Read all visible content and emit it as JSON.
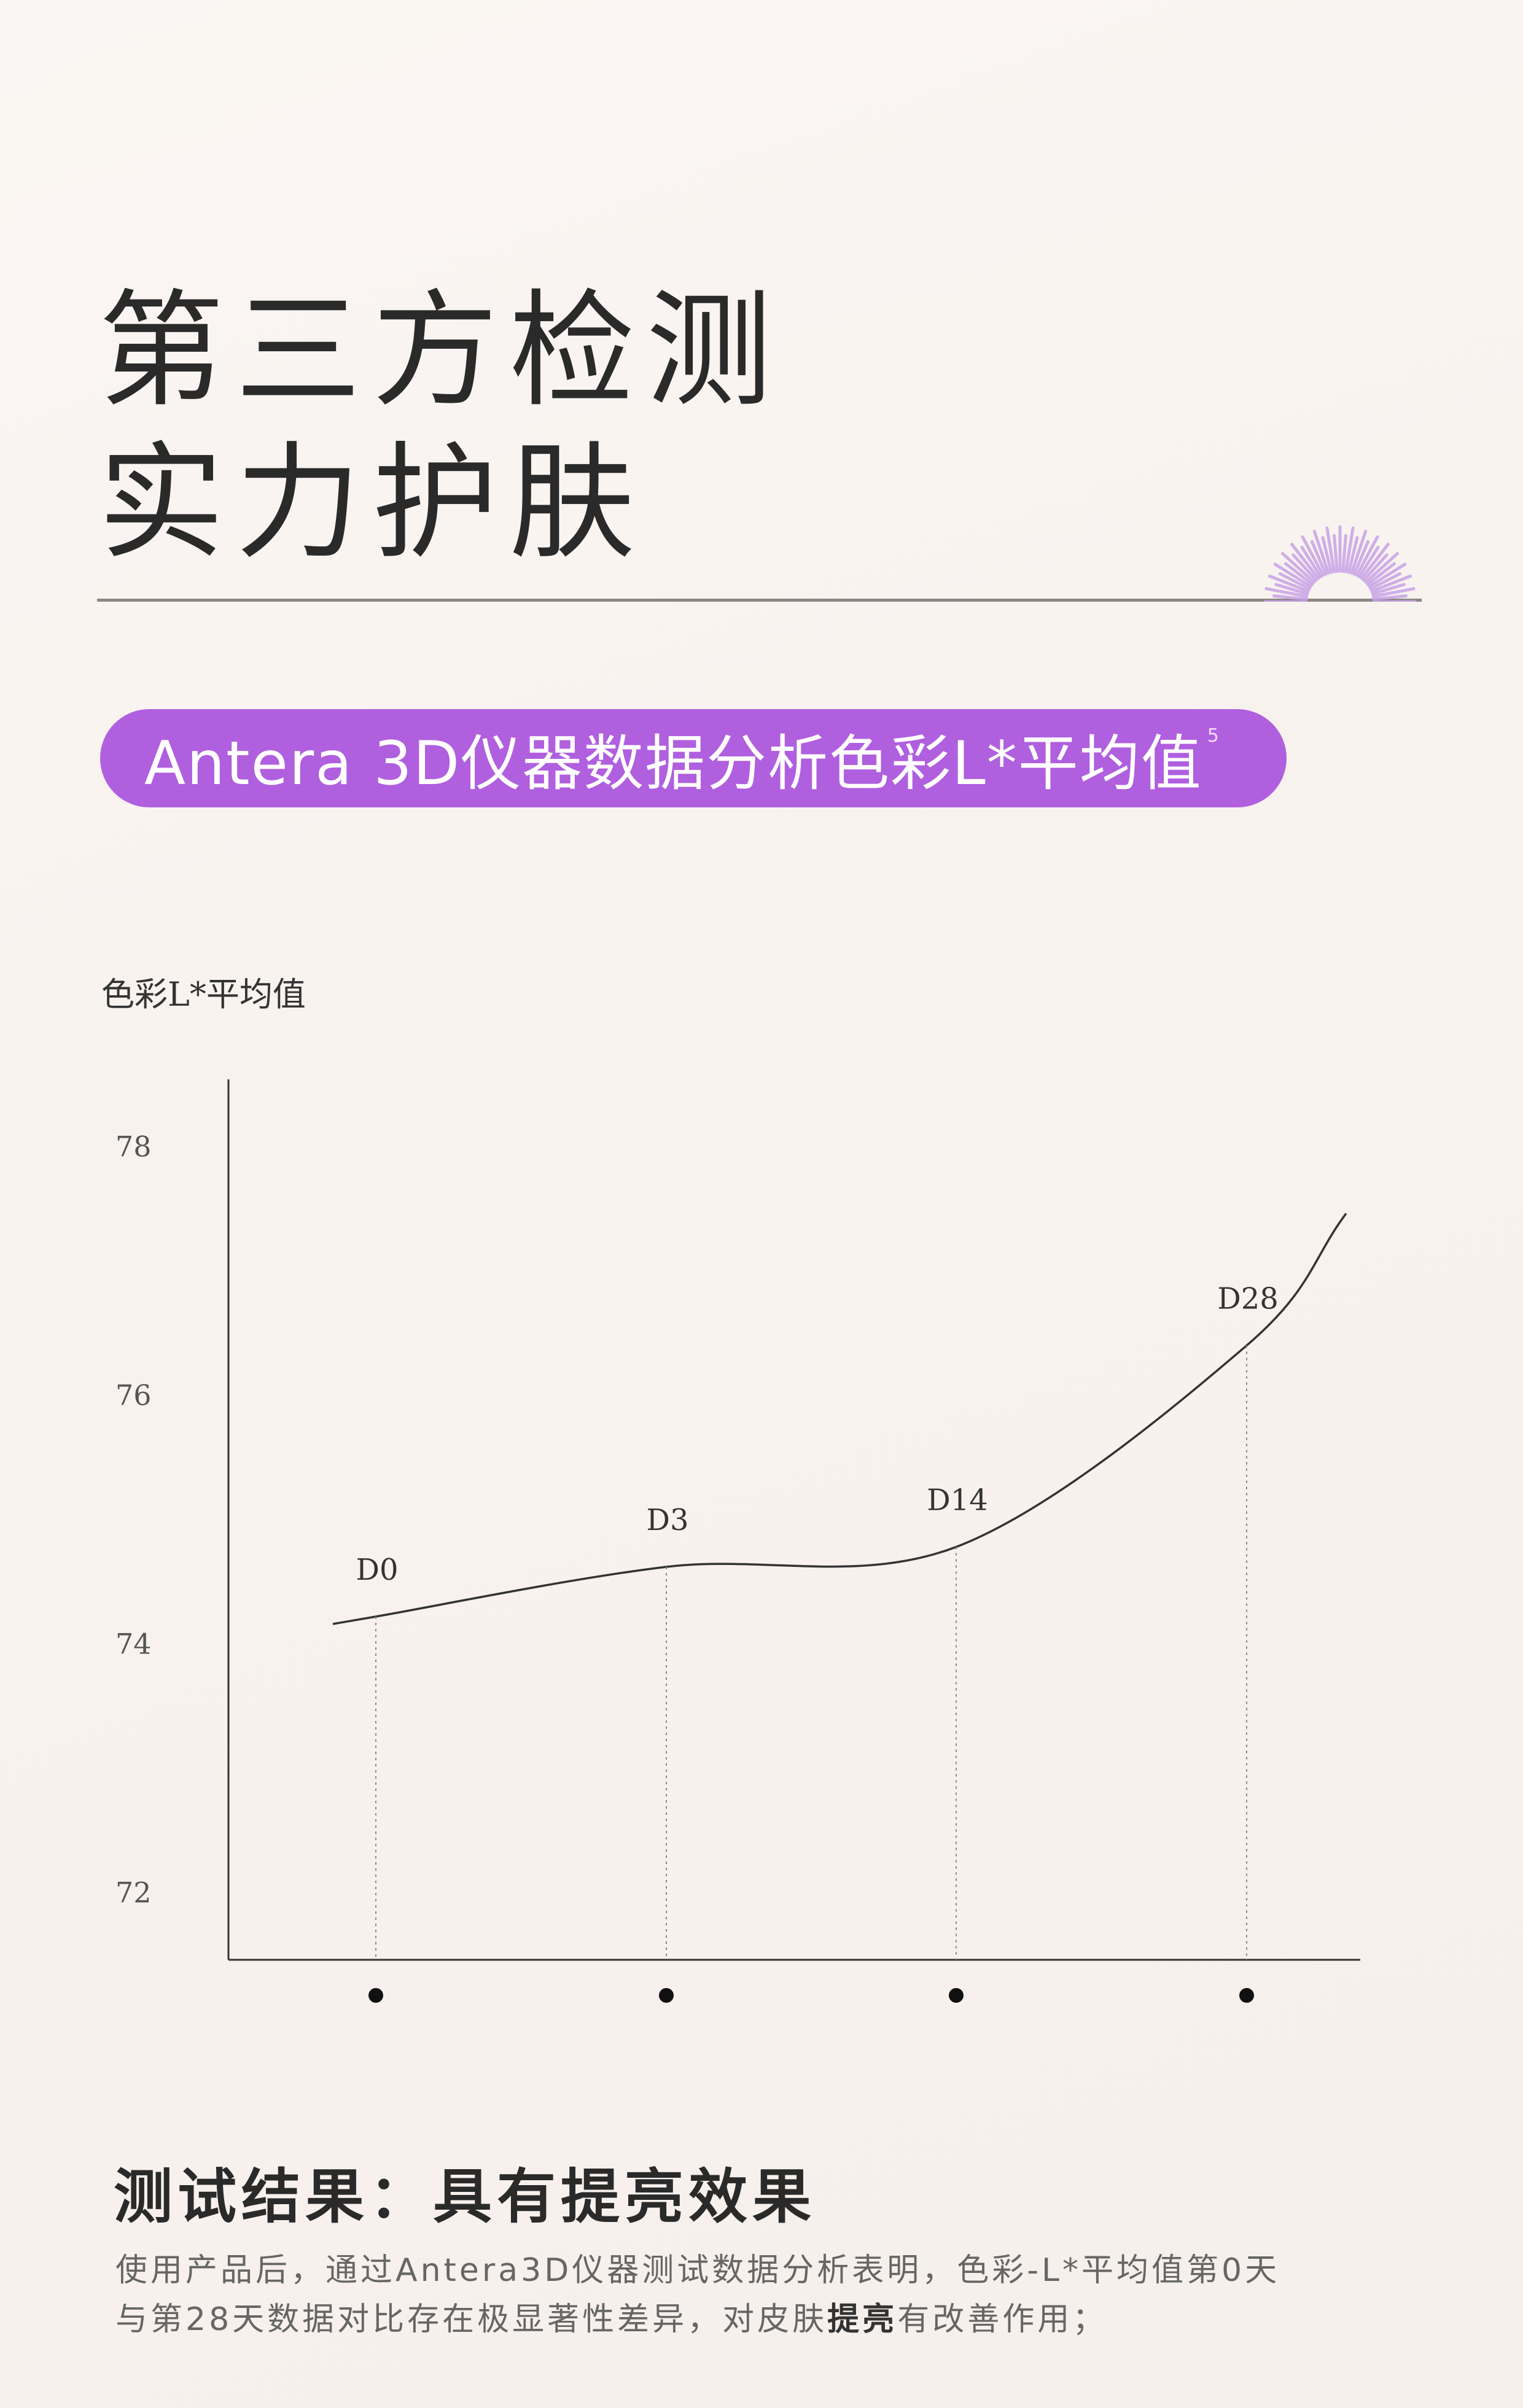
{
  "header": {
    "title_line1": "第三方检测",
    "title_line2": "实力护肤",
    "decoration_icon": "purple-fan-icon"
  },
  "pill": {
    "label": "Antera 3D仪器数据分析色彩L*平均值",
    "footnote": "5",
    "color": "#b05fdf"
  },
  "chart_data": {
    "type": "line",
    "title": "",
    "ylabel": "色彩L*平均值",
    "xlabel": "",
    "categories": [
      "D0",
      "D3",
      "D14",
      "D28"
    ],
    "values": [
      74.22,
      74.62,
      74.78,
      76.4
    ],
    "ylim": [
      71.46,
      78.54
    ],
    "yticks": [
      "72",
      "74",
      "76",
      "78"
    ],
    "grid": false,
    "line_color": "#333333",
    "point_labels": true
  },
  "result": {
    "title": "测试结果：具有提亮效果",
    "line1": "使用产品后，通过Antera3D仪器测试数据分析表明，色彩-L*平均值第0天",
    "line2_a": "与第28天数据对比存在极显著性差异，对皮肤",
    "line2_bold": "提亮",
    "line2_b": "有改善作用；"
  }
}
